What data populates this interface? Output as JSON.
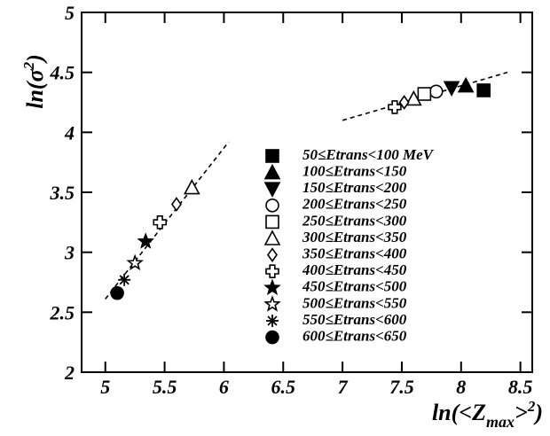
{
  "chart_data": {
    "type": "scatter",
    "y_label": {
      "main": "ln(σ",
      "sup": "2",
      "end": ")"
    },
    "x_label": {
      "main": "ln(<Z",
      "sub": "max",
      "mid": ">",
      "sup": "2",
      "end": ")"
    },
    "xlim": [
      4.8,
      8.6
    ],
    "ylim": [
      2,
      5
    ],
    "xticks": [
      5,
      5.5,
      6,
      6.5,
      7,
      7.5,
      8,
      8.5
    ],
    "yticks": [
      2,
      2.5,
      3,
      3.5,
      4,
      4.5,
      5
    ],
    "series": [
      {
        "name": "50≤Etrans<100 MeV",
        "marker": "square",
        "filled": true,
        "color": "#000000",
        "x": [
          8.19
        ],
        "y": [
          4.35
        ]
      },
      {
        "name": "100≤Etrans<150",
        "marker": "triangle-up",
        "filled": true,
        "color": "#000000",
        "x": [
          8.04
        ],
        "y": [
          4.39
        ]
      },
      {
        "name": "150≤Etrans<200",
        "marker": "triangle-down",
        "filled": true,
        "color": "#000000",
        "x": [
          7.92
        ],
        "y": [
          4.37
        ]
      },
      {
        "name": "200≤Etrans<250",
        "marker": "circle",
        "filled": false,
        "color": "#000000",
        "x": [
          7.79
        ],
        "y": [
          4.34
        ]
      },
      {
        "name": "250≤Etrans<300",
        "marker": "square",
        "filled": false,
        "color": "#000000",
        "x": [
          7.69
        ],
        "y": [
          4.32
        ]
      },
      {
        "name": "300≤Etrans<350",
        "marker": "triangle-up",
        "filled": false,
        "color": "#000000",
        "x": [
          7.6,
          5.73
        ],
        "y": [
          4.28,
          3.54
        ]
      },
      {
        "name": "350≤Etrans<400",
        "marker": "diamond",
        "filled": false,
        "color": "#000000",
        "x": [
          7.52,
          5.6
        ],
        "y": [
          4.25,
          3.4
        ]
      },
      {
        "name": "400≤Etrans<450",
        "marker": "cross",
        "filled": false,
        "color": "#000000",
        "x": [
          7.44,
          5.46
        ],
        "y": [
          4.21,
          3.25
        ]
      },
      {
        "name": "450≤Etrans<500",
        "marker": "star",
        "filled": true,
        "color": "#000000",
        "x": [
          5.34
        ],
        "y": [
          3.09
        ]
      },
      {
        "name": "500≤Etrans<550",
        "marker": "star",
        "filled": false,
        "color": "#000000",
        "x": [
          5.25
        ],
        "y": [
          2.91
        ]
      },
      {
        "name": "550≤Etrans<600",
        "marker": "asterisk",
        "filled": false,
        "color": "#000000",
        "x": [
          5.16
        ],
        "y": [
          2.77
        ]
      },
      {
        "name": "600≤Etrans<650",
        "marker": "circle",
        "filled": true,
        "color": "#000000",
        "x": [
          5.1
        ],
        "y": [
          2.66
        ]
      }
    ],
    "fit_lines": [
      {
        "x": [
          5.0,
          6.04
        ],
        "y": [
          2.61,
          3.92
        ]
      },
      {
        "x": [
          7.0,
          8.39
        ],
        "y": [
          4.1,
          4.5
        ]
      }
    ]
  }
}
